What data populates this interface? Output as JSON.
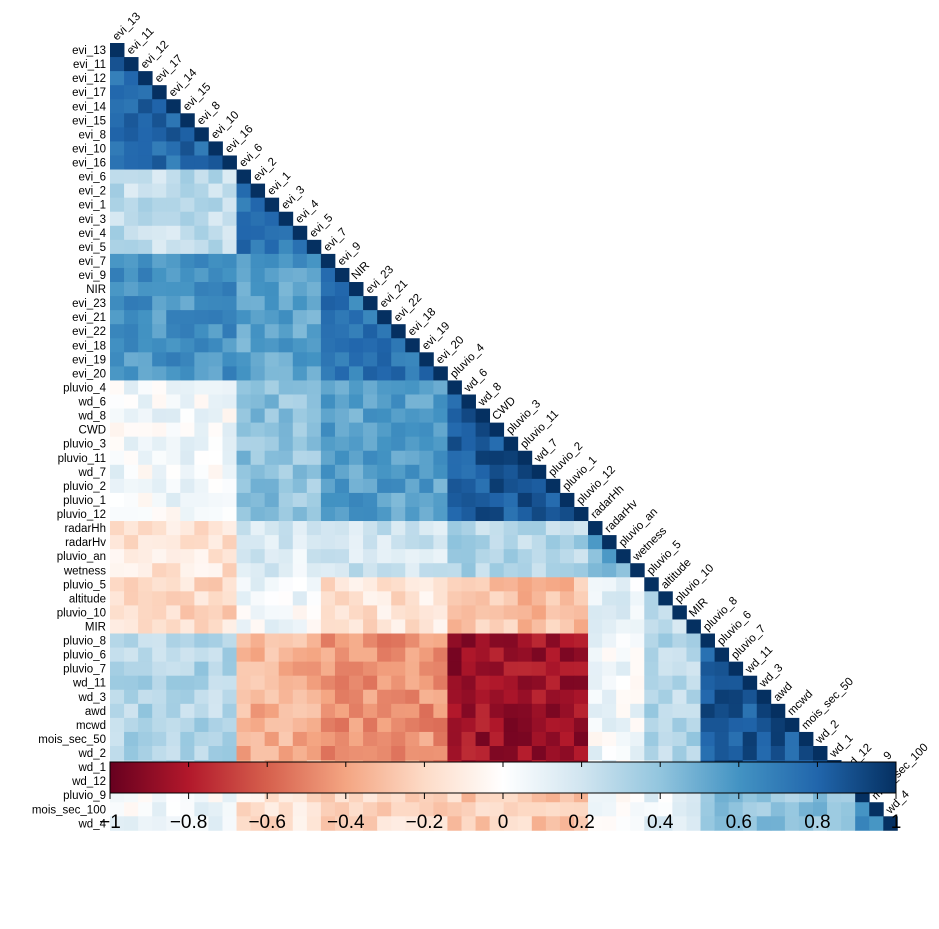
{
  "chart_data": {
    "type": "heatmap",
    "layout": "lower-triangle correlation matrix",
    "title": "",
    "xlabel": "",
    "ylabel": "",
    "variables": [
      "evi_13",
      "evi_11",
      "evi_12",
      "evi_17",
      "evi_14",
      "evi_15",
      "evi_8",
      "evi_10",
      "evi_16",
      "evi_6",
      "evi_2",
      "evi_1",
      "evi_3",
      "evi_4",
      "evi_5",
      "evi_7",
      "evi_9",
      "NIR",
      "evi_23",
      "evi_21",
      "evi_22",
      "evi_18",
      "evi_19",
      "evi_20",
      "pluvio_4",
      "wd_6",
      "wd_8",
      "CWD",
      "pluvio_3",
      "pluvio_11",
      "wd_7",
      "pluvio_2",
      "pluvio_1",
      "pluvio_12",
      "radarHh",
      "radarHv",
      "pluvio_an",
      "wetness",
      "pluvio_5",
      "altitude",
      "pluvio_10",
      "MIR",
      "pluvio_8",
      "pluvio_6",
      "pluvio_7",
      "wd_11",
      "wd_3",
      "awd",
      "mcwd",
      "mois_sec_50",
      "wd_2",
      "wd_1",
      "wd_12",
      "pluvio_9",
      "mois_sec_100",
      "wd_4"
    ],
    "value_range": [
      -1,
      1
    ],
    "colorbar": {
      "ticks": [
        -1,
        -0.8,
        -0.6,
        -0.4,
        -0.2,
        0,
        0.2,
        0.4,
        0.6,
        0.8,
        1
      ],
      "tick_labels": [
        "−1",
        "−0.8",
        "−0.6",
        "−0.4",
        "−0.2",
        "0",
        "0.2",
        "0.4",
        "0.6",
        "0.8",
        "1"
      ],
      "colors": [
        "#67001f",
        "#b2182b",
        "#d6604d",
        "#f4a582",
        "#fddbc7",
        "#ffffff",
        "#d1e5f0",
        "#92c5de",
        "#4393c3",
        "#2166ac",
        "#053061"
      ]
    },
    "groups": {
      "evi_early": [
        0,
        8
      ],
      "evi_mid": [
        9,
        14
      ],
      "evi_late": [
        15,
        23
      ],
      "rain_a": [
        24,
        33
      ],
      "radar_wet": [
        34,
        37
      ],
      "misc": [
        38,
        41
      ],
      "dry": [
        42,
        52
      ],
      "tail": [
        53,
        55
      ]
    },
    "block_correlations": [
      {
        "a": "evi_early",
        "b": "evi_early",
        "r": 0.78
      },
      {
        "a": "evi_mid",
        "b": "evi_early",
        "r": 0.25
      },
      {
        "a": "evi_mid",
        "b": "evi_mid",
        "r": 0.72
      },
      {
        "a": "evi_late",
        "b": "evi_early",
        "r": 0.6
      },
      {
        "a": "evi_late",
        "b": "evi_mid",
        "r": 0.55
      },
      {
        "a": "evi_late",
        "b": "evi_late",
        "r": 0.72
      },
      {
        "a": "rain_a",
        "b": "evi_early",
        "r": 0.05
      },
      {
        "a": "rain_a",
        "b": "evi_mid",
        "r": 0.4
      },
      {
        "a": "rain_a",
        "b": "evi_late",
        "r": 0.55
      },
      {
        "a": "rain_a",
        "b": "rain_a",
        "r": 0.85
      },
      {
        "a": "radar_wet",
        "b": "evi_early",
        "r": -0.15
      },
      {
        "a": "radar_wet",
        "b": "evi_mid",
        "r": 0.15
      },
      {
        "a": "radar_wet",
        "b": "evi_late",
        "r": 0.2
      },
      {
        "a": "radar_wet",
        "b": "rain_a",
        "r": 0.3
      },
      {
        "a": "radar_wet",
        "b": "radar_wet",
        "r": 0.5
      },
      {
        "a": "misc",
        "b": "evi_early",
        "r": -0.2
      },
      {
        "a": "misc",
        "b": "evi_mid",
        "r": 0.05
      },
      {
        "a": "misc",
        "b": "evi_late",
        "r": -0.15
      },
      {
        "a": "misc",
        "b": "rain_a",
        "r": -0.3
      },
      {
        "a": "misc",
        "b": "radar_wet",
        "r": 0.1
      },
      {
        "a": "misc",
        "b": "misc",
        "r": 0.2
      },
      {
        "a": "dry",
        "b": "evi_early",
        "r": 0.3
      },
      {
        "a": "dry",
        "b": "evi_mid",
        "r": -0.35
      },
      {
        "a": "dry",
        "b": "evi_late",
        "r": -0.45
      },
      {
        "a": "dry",
        "b": "rain_a",
        "r": -0.85
      },
      {
        "a": "dry",
        "b": "radar_wet",
        "r": 0.05
      },
      {
        "a": "dry",
        "b": "misc",
        "r": 0.3
      },
      {
        "a": "dry",
        "b": "dry",
        "r": 0.85
      },
      {
        "a": "tail",
        "b": "evi_early",
        "r": 0.05
      },
      {
        "a": "tail",
        "b": "evi_mid",
        "r": -0.15
      },
      {
        "a": "tail",
        "b": "evi_late",
        "r": -0.2
      },
      {
        "a": "tail",
        "b": "rain_a",
        "r": -0.25
      },
      {
        "a": "tail",
        "b": "radar_wet",
        "r": 0.0
      },
      {
        "a": "tail",
        "b": "misc",
        "r": 0.1
      },
      {
        "a": "tail",
        "b": "dry",
        "r": 0.4
      },
      {
        "a": "tail",
        "b": "tail",
        "r": 0.6
      }
    ]
  }
}
